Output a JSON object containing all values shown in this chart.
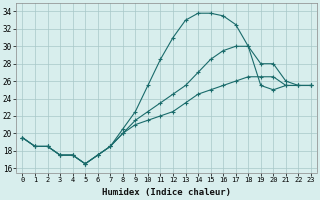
{
  "xlabel": "Humidex (Indice chaleur)",
  "xlim": [
    -0.5,
    23.5
  ],
  "ylim": [
    15.5,
    35.0
  ],
  "xticks": [
    0,
    1,
    2,
    3,
    4,
    5,
    6,
    7,
    8,
    9,
    10,
    11,
    12,
    13,
    14,
    15,
    16,
    17,
    18,
    19,
    20,
    21,
    22,
    23
  ],
  "yticks": [
    16,
    18,
    20,
    22,
    24,
    26,
    28,
    30,
    32,
    34
  ],
  "bg_color": "#d8eeed",
  "grid_color": "#a8c8c8",
  "line_color": "#1a6b6b",
  "line1_x": [
    0,
    1,
    2,
    3,
    4,
    5,
    6,
    7,
    8,
    9,
    10,
    11,
    12,
    13,
    14,
    15,
    16,
    17,
    18,
    19,
    20,
    21,
    22,
    23
  ],
  "line1_y": [
    19.5,
    18.5,
    18.5,
    17.5,
    17.5,
    16.5,
    17.5,
    18.5,
    20.5,
    22.5,
    25.5,
    28.5,
    31.0,
    33.0,
    33.8,
    33.8,
    33.5,
    32.5,
    30.0,
    25.5,
    25.0,
    25.5,
    25.5,
    25.5
  ],
  "line2_x": [
    0,
    1,
    2,
    3,
    4,
    5,
    6,
    7,
    8,
    9,
    10,
    11,
    12,
    13,
    14,
    15,
    16,
    17,
    18,
    19,
    20,
    21,
    22,
    23
  ],
  "line2_y": [
    19.5,
    18.5,
    18.5,
    17.5,
    17.5,
    16.5,
    17.5,
    18.5,
    20.0,
    21.5,
    22.5,
    23.5,
    24.5,
    25.5,
    27.0,
    28.5,
    29.5,
    30.0,
    30.0,
    28.0,
    28.0,
    26.0,
    25.5,
    25.5
  ],
  "line3_x": [
    0,
    1,
    2,
    3,
    4,
    5,
    6,
    7,
    8,
    9,
    10,
    11,
    12,
    13,
    14,
    15,
    16,
    17,
    18,
    19,
    20,
    21,
    22,
    23
  ],
  "line3_y": [
    19.5,
    18.5,
    18.5,
    17.5,
    17.5,
    16.5,
    17.5,
    18.5,
    20.0,
    21.0,
    21.5,
    22.0,
    22.5,
    23.5,
    24.5,
    25.0,
    25.5,
    26.0,
    26.5,
    26.5,
    26.5,
    25.5,
    25.5,
    25.5
  ]
}
